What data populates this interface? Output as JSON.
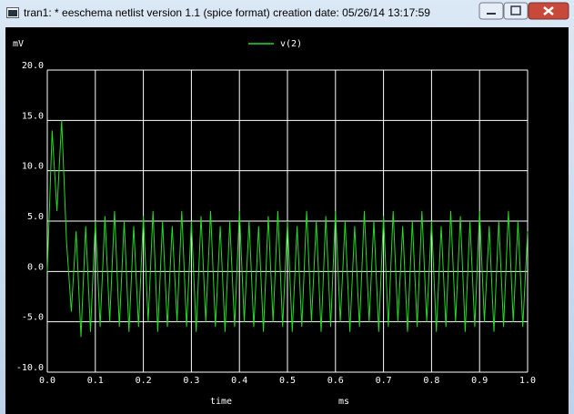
{
  "window": {
    "title": "tran1: * eeschema netlist version 1.1 (spice format) creation date: 05/26/14 13:17:59"
  },
  "chart_data": {
    "type": "line",
    "y_label": "mV",
    "x_label": "time",
    "x_unit": "ms",
    "xlim": [
      0,
      1
    ],
    "ylim": [
      -10,
      20
    ],
    "xticks": [
      {
        "value": 0,
        "label": "0.0"
      },
      {
        "value": 0.1,
        "label": "0.1"
      },
      {
        "value": 0.2,
        "label": "0.2"
      },
      {
        "value": 0.3,
        "label": "0.3"
      },
      {
        "value": 0.4,
        "label": "0.4"
      },
      {
        "value": 0.5,
        "label": "0.5"
      },
      {
        "value": 0.6,
        "label": "0.6"
      },
      {
        "value": 0.7,
        "label": "0.7"
      },
      {
        "value": 0.8,
        "label": "0.8"
      },
      {
        "value": 0.9,
        "label": "0.9"
      },
      {
        "value": 1,
        "label": "1.0"
      }
    ],
    "yticks": [
      {
        "value": -10,
        "label": "-10.0"
      },
      {
        "value": -5,
        "label": "-5.0"
      },
      {
        "value": 0,
        "label": "0.0"
      },
      {
        "value": 5,
        "label": "5.0"
      },
      {
        "value": 10,
        "label": "10.0"
      },
      {
        "value": 15,
        "label": "15.0"
      },
      {
        "value": 20,
        "label": "20.0"
      }
    ],
    "grid": true,
    "x": [
      0,
      0.01,
      0.02,
      0.03,
      0.04,
      0.05,
      0.06,
      0.07,
      0.08,
      0.09,
      0.1,
      0.11,
      0.12,
      0.13,
      0.14,
      0.15,
      0.16,
      0.17,
      0.18,
      0.19,
      0.2,
      0.21,
      0.22,
      0.23,
      0.24,
      0.25,
      0.26,
      0.27,
      0.28,
      0.29,
      0.3,
      0.31,
      0.32,
      0.33,
      0.34,
      0.35,
      0.36,
      0.37,
      0.38,
      0.39,
      0.4,
      0.41,
      0.42,
      0.43,
      0.44,
      0.45,
      0.46,
      0.47,
      0.48,
      0.49,
      0.5,
      0.51,
      0.52,
      0.53,
      0.54,
      0.55,
      0.56,
      0.57,
      0.58,
      0.59,
      0.6,
      0.61,
      0.62,
      0.63,
      0.64,
      0.65,
      0.66,
      0.67,
      0.68,
      0.69,
      0.7,
      0.71,
      0.72,
      0.73,
      0.74,
      0.75,
      0.76,
      0.77,
      0.78,
      0.79,
      0.8,
      0.81,
      0.82,
      0.83,
      0.84,
      0.85,
      0.86,
      0.87,
      0.88,
      0.89,
      0.9,
      0.91,
      0.92,
      0.93,
      0.94,
      0.95,
      0.96,
      0.97,
      0.98,
      0.99,
      1
    ],
    "series": [
      {
        "name": "v(2)",
        "color": "#22dd22",
        "values": [
          0,
          14,
          6,
          15,
          3,
          -4,
          4,
          -6.5,
          4.5,
          -6,
          5,
          -5.5,
          5.5,
          -5,
          6,
          -5.5,
          5,
          -6,
          4.5,
          -5.5,
          5.5,
          -5,
          6,
          -6,
          5,
          -5.5,
          4.5,
          -5,
          6,
          -5.5,
          5,
          -6,
          5.5,
          -5,
          6,
          -5.5,
          4.5,
          -6,
          5,
          -5.5,
          6,
          -5,
          5,
          -5.5,
          4.5,
          -6,
          5.5,
          -5,
          6,
          -5.5,
          5,
          -6,
          4.5,
          -5.5,
          6,
          -5,
          5,
          -6,
          5.5,
          -5.5,
          6,
          -5,
          5,
          -6,
          4.5,
          -5.5,
          6,
          -5,
          5,
          -6,
          5.5,
          -5.5,
          6,
          -5,
          4.5,
          -6,
          5,
          -5.5,
          6,
          -5,
          5,
          -6,
          4.5,
          -5.5,
          6,
          -5,
          5.5,
          -6,
          5,
          -5.5,
          6,
          -5,
          4.5,
          -6,
          5,
          -5.5,
          6,
          -5,
          5,
          -5.5,
          4
        ]
      }
    ]
  }
}
